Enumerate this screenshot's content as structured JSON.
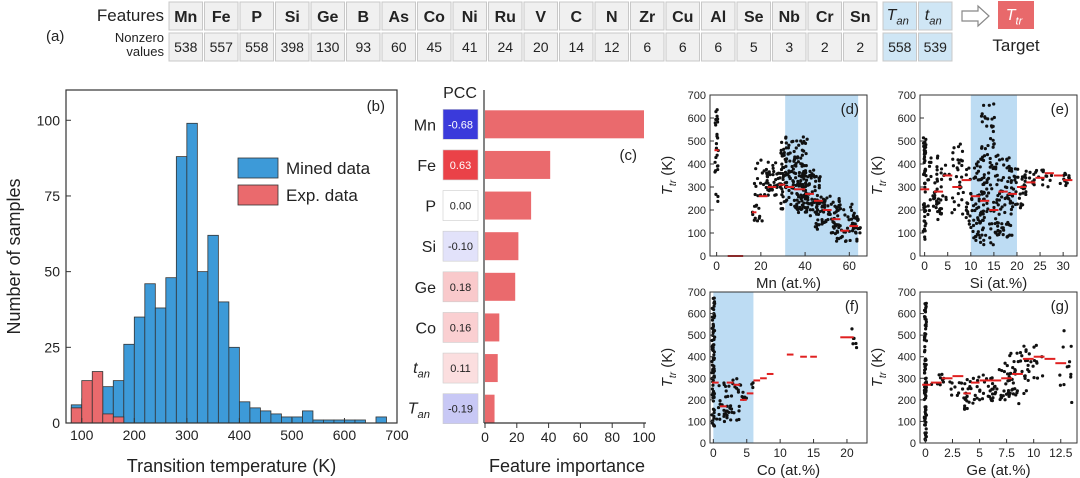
{
  "panel_a": {
    "label": "(a)",
    "features_label": "Features",
    "nonzero_label_1": "Nonzero",
    "nonzero_label_2": "values",
    "features": [
      {
        "name": "Mn",
        "count": "538"
      },
      {
        "name": "Fe",
        "count": "557"
      },
      {
        "name": "P",
        "count": "558"
      },
      {
        "name": "Si",
        "count": "398"
      },
      {
        "name": "Ge",
        "count": "130"
      },
      {
        "name": "B",
        "count": "93"
      },
      {
        "name": "As",
        "count": "60"
      },
      {
        "name": "Co",
        "count": "45"
      },
      {
        "name": "Ni",
        "count": "41"
      },
      {
        "name": "Ru",
        "count": "24"
      },
      {
        "name": "V",
        "count": "20"
      },
      {
        "name": "C",
        "count": "14"
      },
      {
        "name": "N",
        "count": "12"
      },
      {
        "name": "Zr",
        "count": "6"
      },
      {
        "name": "Cu",
        "count": "6"
      },
      {
        "name": "Al",
        "count": "6"
      },
      {
        "name": "Se",
        "count": "5"
      },
      {
        "name": "Nb",
        "count": "3"
      },
      {
        "name": "Cr",
        "count": "2"
      },
      {
        "name": "Sn",
        "count": "2"
      }
    ],
    "process_features": [
      {
        "main": "T",
        "sub": "an",
        "count": "558"
      },
      {
        "main": "t",
        "sub": "an",
        "count": "539"
      }
    ],
    "target": {
      "main": "T",
      "sub": "tr",
      "label": "Target"
    },
    "colors": {
      "cell": "#f0f0f0",
      "cell_border": "#c8c8c8",
      "process_cell": "#cfe6f5",
      "target": "#e8696b"
    }
  },
  "chart_data": [
    {
      "id": "b",
      "label": "(b)",
      "type": "bar",
      "xlabel": "Transition temperature (K)",
      "ylabel": "Number of samples",
      "xlim": [
        70,
        700
      ],
      "ylim": [
        0,
        110
      ],
      "xticks": [
        100,
        200,
        300,
        400,
        500,
        600,
        700
      ],
      "yticks": [
        0,
        25,
        50,
        75,
        100
      ],
      "bin_width": 20,
      "bin_starts": [
        80,
        100,
        120,
        140,
        160,
        180,
        200,
        220,
        240,
        260,
        280,
        300,
        320,
        340,
        360,
        380,
        400,
        420,
        440,
        460,
        480,
        500,
        520,
        540,
        560,
        580,
        600,
        620,
        640,
        660
      ],
      "series": [
        {
          "name": "Mined data",
          "color": "#3d9ad8",
          "values": [
            6,
            8,
            4,
            12,
            14,
            26,
            35,
            46,
            38,
            48,
            88,
            99,
            50,
            62,
            40,
            25,
            7,
            5,
            4,
            3,
            2,
            2,
            4,
            1,
            1,
            1,
            1,
            1,
            0,
            2
          ]
        },
        {
          "name": "Exp. data",
          "color": "#ea6a6d",
          "values": [
            5,
            14,
            17,
            3,
            2,
            0,
            0,
            0,
            0,
            0,
            0,
            0,
            0,
            0,
            0,
            0,
            0,
            0,
            0,
            0,
            0,
            0,
            0,
            0,
            0,
            0,
            0,
            0,
            0,
            0
          ]
        }
      ],
      "legend_position": "top-right"
    },
    {
      "id": "c",
      "label": "(c)",
      "type": "bar",
      "orientation": "horizontal",
      "pcc_title": "PCC",
      "xlabel": "Feature importance",
      "xlim": [
        0,
        100
      ],
      "xticks": [
        0,
        20,
        40,
        60,
        80,
        100
      ],
      "features": [
        {
          "name": "Mn",
          "italic": false,
          "pcc": "-0.68",
          "pcc_value": -0.68,
          "importance": 100
        },
        {
          "name": "Fe",
          "italic": false,
          "pcc": "0.63",
          "pcc_value": 0.63,
          "importance": 41
        },
        {
          "name": "P",
          "italic": false,
          "pcc": "0.00",
          "pcc_value": 0.0,
          "importance": 29
        },
        {
          "name": "Si",
          "italic": false,
          "pcc": "-0.10",
          "pcc_value": -0.1,
          "importance": 21
        },
        {
          "name": "Ge",
          "italic": false,
          "pcc": "0.18",
          "pcc_value": 0.18,
          "importance": 19
        },
        {
          "name": "Co",
          "italic": false,
          "pcc": "0.16",
          "pcc_value": 0.16,
          "importance": 9
        },
        {
          "name": "t",
          "sub": "an",
          "italic": true,
          "pcc": "0.11",
          "pcc_value": 0.11,
          "importance": 8
        },
        {
          "name": "T",
          "sub": "an",
          "italic": true,
          "pcc": "-0.19",
          "pcc_value": -0.19,
          "importance": 6
        }
      ],
      "bar_color": "#ea6a6d",
      "pcc_negative_color": "#3a3adb",
      "pcc_positive_color": "#e8333a"
    },
    {
      "id": "d",
      "label": "(d)",
      "type": "scatter",
      "xlabel": "Mn (at.%)",
      "ylabel_main": "T",
      "ylabel_sub": "tr",
      "ylabel_unit": " (K)",
      "xlim": [
        -3,
        68
      ],
      "ylim": [
        0,
        700
      ],
      "xticks": [
        0,
        20,
        40,
        60
      ],
      "yticks": [
        0,
        100,
        200,
        300,
        400,
        500,
        600,
        700
      ],
      "highlight": [
        31,
        64
      ],
      "clusters": [
        [
          0,
          0.8,
          220,
          680,
          25
        ],
        [
          18,
          3,
          150,
          230,
          12
        ],
        [
          22,
          5,
          250,
          420,
          30
        ],
        [
          27,
          5,
          280,
          380,
          40
        ],
        [
          35,
          6,
          200,
          520,
          140
        ],
        [
          42,
          5,
          170,
          380,
          80
        ],
        [
          50,
          6,
          100,
          260,
          60
        ],
        [
          58,
          6,
          60,
          230,
          50
        ],
        [
          63,
          2,
          100,
          190,
          15
        ]
      ],
      "means": [
        [
          -1,
          1,
          460
        ],
        [
          5,
          12,
          0
        ],
        [
          16,
          18,
          190
        ],
        [
          19,
          23,
          260
        ],
        [
          23,
          27,
          300
        ],
        [
          28,
          31,
          310
        ],
        [
          31,
          35,
          300
        ],
        [
          35,
          40,
          290
        ],
        [
          40,
          44,
          270
        ],
        [
          44,
          48,
          240
        ],
        [
          48,
          52,
          200
        ],
        [
          52,
          56,
          160
        ],
        [
          56,
          60,
          110
        ],
        [
          60,
          64,
          130
        ]
      ]
    },
    {
      "id": "e",
      "label": "(e)",
      "type": "scatter",
      "xlabel": "Si (at.%)",
      "ylabel_main": "T",
      "ylabel_sub": "tr",
      "ylabel_unit": " (K)",
      "xlim": [
        -1,
        33
      ],
      "ylim": [
        0,
        700
      ],
      "xticks": [
        0,
        5,
        10,
        15,
        20,
        25,
        30
      ],
      "yticks": [
        0,
        100,
        200,
        300,
        400,
        500,
        600,
        700
      ],
      "highlight": [
        10,
        20
      ],
      "clusters": [
        [
          0,
          0.3,
          60,
          520,
          50
        ],
        [
          2,
          1.5,
          150,
          450,
          30
        ],
        [
          4,
          1.5,
          180,
          420,
          25
        ],
        [
          7,
          1.5,
          180,
          500,
          30
        ],
        [
          11,
          2,
          50,
          420,
          70
        ],
        [
          14,
          2,
          40,
          680,
          90
        ],
        [
          17,
          2,
          80,
          430,
          70
        ],
        [
          20,
          2,
          200,
          380,
          40
        ],
        [
          23,
          1.5,
          300,
          380,
          15
        ],
        [
          26,
          1.5,
          300,
          380,
          12
        ],
        [
          30,
          2,
          300,
          370,
          12
        ]
      ],
      "means": [
        [
          -1,
          1,
          290
        ],
        [
          2,
          4,
          280
        ],
        [
          4,
          6,
          350
        ],
        [
          6,
          8,
          300
        ],
        [
          8,
          10,
          330
        ],
        [
          10,
          12,
          260
        ],
        [
          12,
          14,
          240
        ],
        [
          14,
          16,
          200
        ],
        [
          16,
          18,
          280
        ],
        [
          18,
          20,
          270
        ],
        [
          20,
          22,
          300
        ],
        [
          22,
          24,
          320
        ],
        [
          24,
          26,
          340
        ],
        [
          26,
          28,
          360
        ],
        [
          28,
          30,
          350
        ],
        [
          30,
          32,
          330
        ]
      ]
    },
    {
      "id": "f",
      "label": "(f)",
      "type": "scatter",
      "xlabel": "Co (at.%)",
      "ylabel_main": "T",
      "ylabel_sub": "tr",
      "ylabel_unit": " (K)",
      "xlim": [
        -0.5,
        23
      ],
      "ylim": [
        0,
        700
      ],
      "xticks": [
        0,
        5,
        10,
        15,
        20
      ],
      "yticks": [
        0,
        100,
        200,
        300,
        400,
        500,
        600,
        700
      ],
      "highlight": [
        0,
        6
      ],
      "clusters": [
        [
          0,
          0.2,
          60,
          680,
          80
        ],
        [
          1.5,
          1,
          80,
          320,
          25
        ],
        [
          3,
          1,
          100,
          300,
          20
        ],
        [
          5,
          1,
          200,
          300,
          10
        ],
        [
          21,
          0.5,
          440,
          540,
          6
        ]
      ],
      "means": [
        [
          -0.2,
          0.8,
          280
        ],
        [
          1,
          2,
          170
        ],
        [
          2,
          3,
          280
        ],
        [
          3,
          4,
          270
        ],
        [
          4,
          5,
          200
        ],
        [
          5,
          6,
          230
        ],
        [
          6,
          7,
          290
        ],
        [
          7,
          8,
          300
        ],
        [
          8,
          9,
          320
        ],
        [
          11,
          12,
          410
        ],
        [
          13,
          14,
          400
        ],
        [
          14.5,
          15.5,
          400
        ],
        [
          19,
          21,
          490
        ]
      ]
    },
    {
      "id": "g",
      "label": "(g)",
      "type": "scatter",
      "xlabel": "Ge (at.%)",
      "ylabel_main": "T",
      "ylabel_sub": "tr",
      "ylabel_unit": " (K)",
      "xlim": [
        -0.5,
        14
      ],
      "ylim": [
        0,
        700
      ],
      "xticks": [
        0,
        2.5,
        5.0,
        7.5,
        10.0,
        12.5
      ],
      "yticks": [
        0,
        100,
        200,
        300,
        400,
        500,
        600,
        700
      ],
      "highlight": null,
      "clusters": [
        [
          0,
          0.1,
          10,
          650,
          90
        ],
        [
          1.5,
          1,
          240,
          320,
          10
        ],
        [
          3,
          1,
          200,
          320,
          12
        ],
        [
          4.2,
          0.6,
          120,
          300,
          20
        ],
        [
          5.5,
          1,
          180,
          320,
          20
        ],
        [
          6.8,
          1,
          200,
          360,
          25
        ],
        [
          7.8,
          1,
          180,
          420,
          25
        ],
        [
          8.8,
          1,
          220,
          450,
          20
        ],
        [
          10,
          1,
          300,
          460,
          15
        ],
        [
          13,
          0.6,
          150,
          540,
          12
        ]
      ],
      "means": [
        [
          -0.3,
          0.5,
          270
        ],
        [
          0.5,
          1.5,
          280
        ],
        [
          1.5,
          2.5,
          300
        ],
        [
          2.5,
          3.5,
          310
        ],
        [
          3.5,
          4.2,
          230
        ],
        [
          4.2,
          5,
          280
        ],
        [
          5,
          6,
          290
        ],
        [
          6,
          7,
          290
        ],
        [
          7,
          8,
          300
        ],
        [
          8,
          9,
          320
        ],
        [
          9,
          10,
          390
        ],
        [
          10,
          11,
          400
        ],
        [
          11,
          12,
          390
        ],
        [
          12,
          13,
          370
        ]
      ]
    }
  ],
  "colors": {
    "axis": "#333333",
    "scatter_point": "#111111",
    "mean_line": "#e02020",
    "highlight": "#bddcf3"
  }
}
